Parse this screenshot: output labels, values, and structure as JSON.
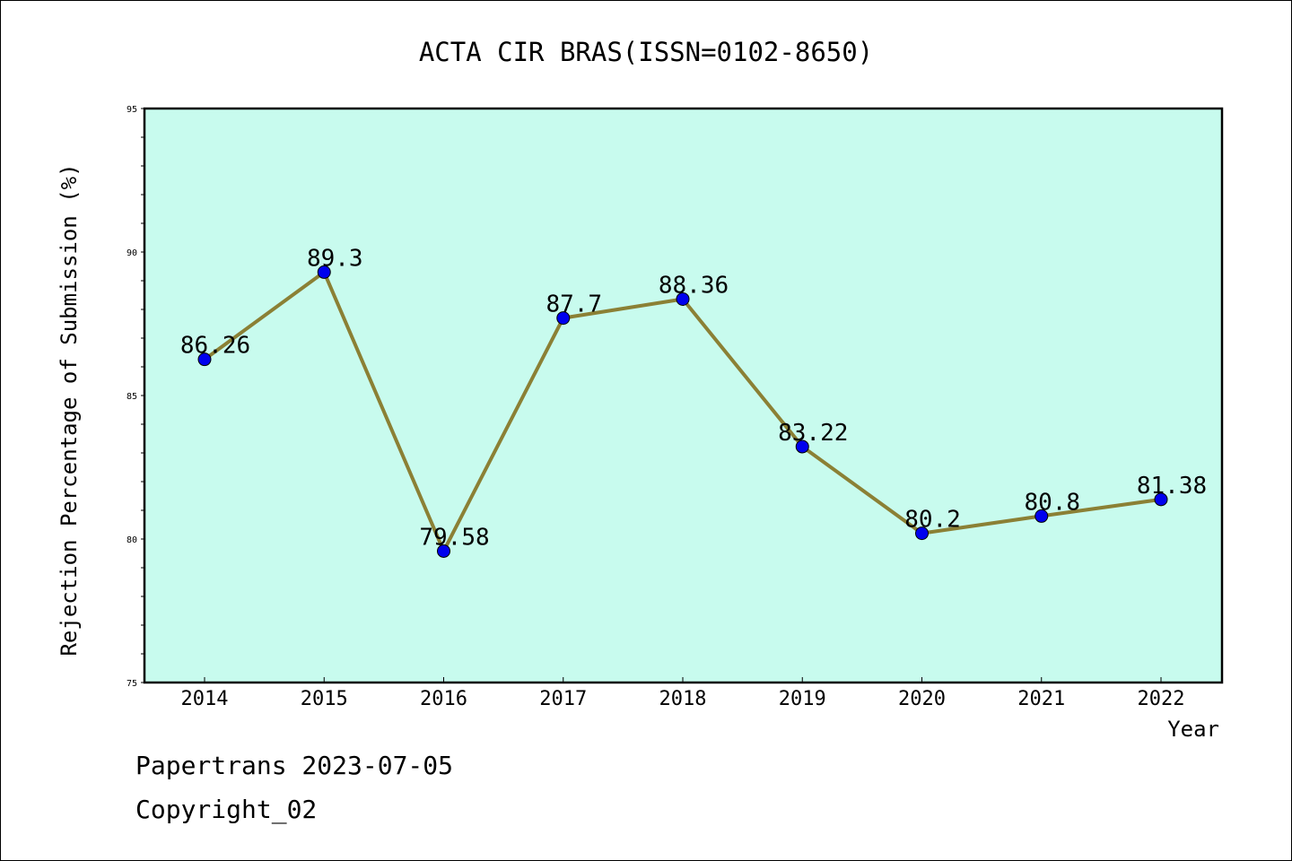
{
  "chart_data": {
    "type": "line",
    "title": "ACTA CIR BRAS(ISSN=0102-8650)",
    "xlabel": "Year",
    "ylabel": "Rejection Percentage of Submission (%)",
    "categories": [
      "2014",
      "2015",
      "2016",
      "2017",
      "2018",
      "2019",
      "2020",
      "2021",
      "2022"
    ],
    "series": [
      {
        "values": [
          86.26,
          89.3,
          79.58,
          87.7,
          88.36,
          83.22,
          80.2,
          80.8,
          81.38
        ],
        "labels": [
          "86.26",
          "89.3",
          "79.58",
          "87.7",
          "88.36",
          "83.22",
          "80.2",
          "80.8",
          "81.38"
        ],
        "line_color": "#8b8035",
        "marker_color": "#0000ee"
      }
    ],
    "ylim": [
      75,
      95
    ],
    "yticks": [
      "75",
      "80",
      "85",
      "90",
      "95"
    ],
    "y_minor_step": 1,
    "grid": false,
    "plot_background": "#c8fbee",
    "legend": "none"
  },
  "footer": {
    "line1": "Papertrans 2023-07-05",
    "line2": "Copyright_02"
  }
}
